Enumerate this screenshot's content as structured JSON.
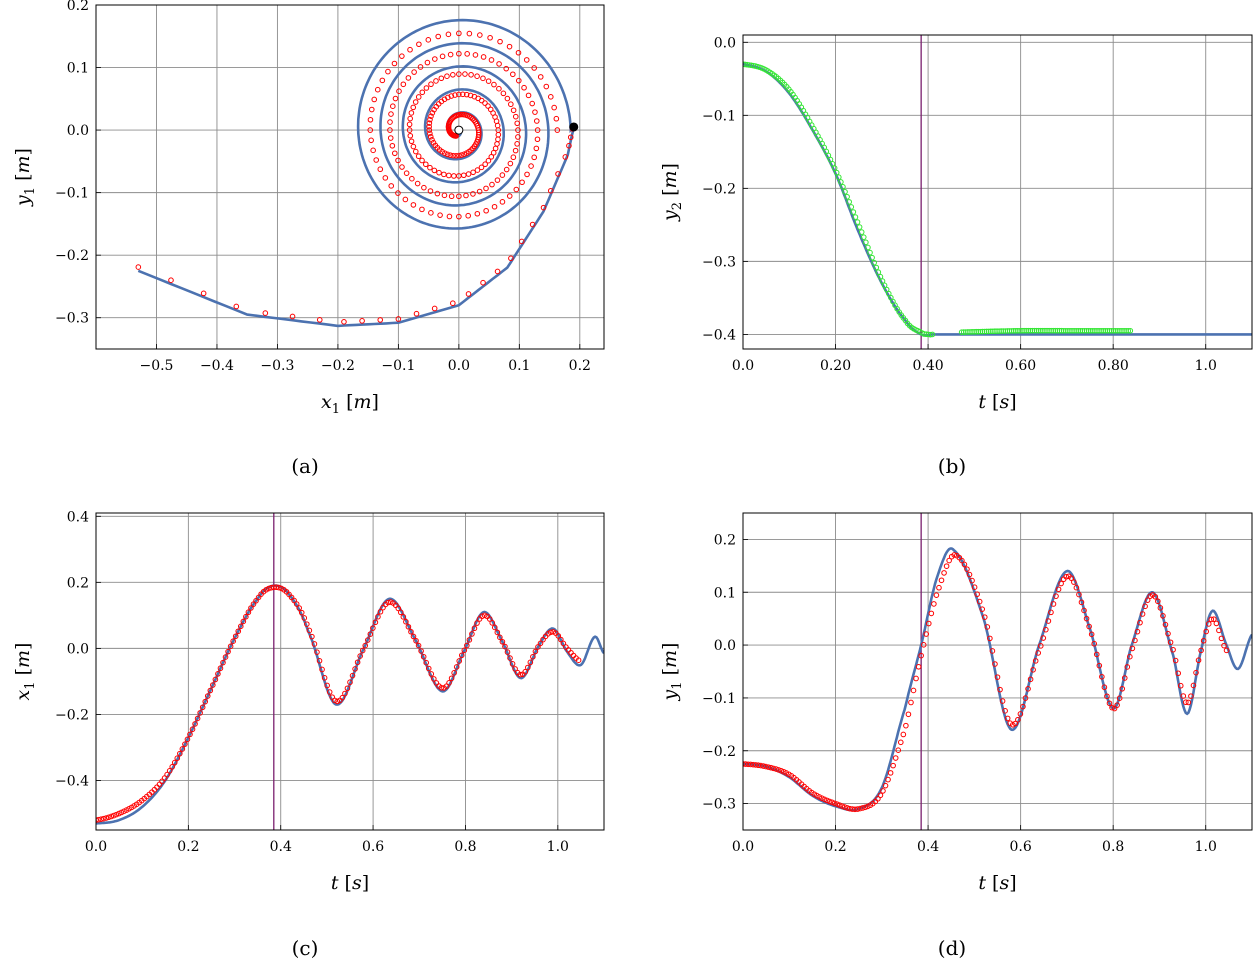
{
  "style": {
    "sim_color": "#4c72b0",
    "exp_marker_color": "#ff0000",
    "exp_marker_color_b": "#33e633",
    "vline_color": "#7a1f6e",
    "grid_color": "#8c8c8c"
  },
  "chart_data": [
    {
      "id": "a",
      "type": "line",
      "caption": "(a)",
      "xlabel": {
        "var": "x",
        "sub": "1",
        "unit": "[m]"
      },
      "ylabel": {
        "var": "y",
        "sub": "1",
        "unit": "[m]"
      },
      "xlim": [
        -0.6,
        0.24
      ],
      "ylim": [
        -0.35,
        0.2
      ],
      "xticks": [
        -0.5,
        -0.4,
        -0.3,
        -0.2,
        -0.1,
        0.0,
        0.1,
        0.2
      ],
      "xtick_labels": [
        "−0.5",
        "−0.4",
        "−0.3",
        "−0.2",
        "−0.1",
        "0.0",
        "0.1",
        "0.2"
      ],
      "yticks": [
        -0.3,
        -0.2,
        -0.1,
        0.0,
        0.1,
        0.2
      ],
      "ytick_labels": [
        "−0.3",
        "−0.2",
        "−0.1",
        "0.0",
        "0.1",
        "0.2"
      ],
      "grid": true,
      "series": [
        {
          "kind": "simulation",
          "description": "spiral trajectory ending at origin",
          "start": [
            -0.53,
            -0.225
          ],
          "spiral_center": [
            0.0,
            0.0
          ],
          "outer_radius": 0.185,
          "turns": 5
        },
        {
          "kind": "experiment",
          "marker": "circle"
        }
      ],
      "markers": [
        {
          "kind": "end-point",
          "x": 0.0,
          "y": 0.0,
          "fill": "#ffffff"
        },
        {
          "kind": "release-point",
          "x": 0.19,
          "y": 0.005,
          "fill": "#000000"
        }
      ]
    },
    {
      "id": "b",
      "type": "line",
      "caption": "(b)",
      "xlabel": {
        "var": "t",
        "sub": "",
        "unit": "[s]"
      },
      "ylabel": {
        "var": "y",
        "sub": "2",
        "unit": "[m]"
      },
      "xlim": [
        0.0,
        1.1
      ],
      "ylim": [
        -0.42,
        0.01
      ],
      "xticks": [
        0.0,
        0.2,
        0.4,
        0.6,
        0.8,
        1.0
      ],
      "xtick_labels": [
        "0.0",
        "0.20",
        "0.40",
        "0.60",
        "0.80",
        "1.0"
      ],
      "yticks": [
        -0.4,
        -0.3,
        -0.2,
        -0.1,
        0.0
      ],
      "ytick_labels": [
        "−0.4",
        "−0.3",
        "−0.2",
        "−0.1",
        "0.0"
      ],
      "grid": true,
      "vline": 0.385,
      "series": [
        {
          "kind": "simulation",
          "x": [
            0.0,
            0.05,
            0.1,
            0.15,
            0.2,
            0.25,
            0.3,
            0.35,
            0.385,
            0.41,
            1.1
          ],
          "y": [
            -0.03,
            -0.04,
            -0.07,
            -0.12,
            -0.18,
            -0.26,
            -0.33,
            -0.38,
            -0.4,
            -0.4,
            -0.4
          ]
        },
        {
          "kind": "experiment",
          "marker": "circle",
          "x": [
            0.0,
            0.05,
            0.1,
            0.15,
            0.2,
            0.25,
            0.3,
            0.35,
            0.385,
            0.4,
            0.41,
            0.47,
            0.6,
            0.7,
            0.84
          ],
          "y": [
            -0.03,
            -0.038,
            -0.065,
            -0.115,
            -0.175,
            -0.25,
            -0.325,
            -0.38,
            -0.397,
            -0.4,
            -0.4,
            -0.397,
            -0.395,
            -0.395,
            -0.395
          ]
        }
      ]
    },
    {
      "id": "c",
      "type": "line",
      "caption": "(c)",
      "xlabel": {
        "var": "t",
        "sub": "",
        "unit": "[s]"
      },
      "ylabel": {
        "var": "x",
        "sub": "1",
        "unit": "[m]"
      },
      "xlim": [
        0.0,
        1.1
      ],
      "ylim": [
        -0.55,
        0.41
      ],
      "xticks": [
        0.0,
        0.2,
        0.4,
        0.6,
        0.8,
        1.0
      ],
      "xtick_labels": [
        "0.0",
        "0.2",
        "0.4",
        "0.6",
        "0.8",
        "1.0"
      ],
      "yticks": [
        -0.4,
        -0.2,
        0.0,
        0.2,
        0.4
      ],
      "ytick_labels": [
        "−0.4",
        "−0.2",
        "0.0",
        "0.2",
        "0.4"
      ],
      "grid": true,
      "vline": 0.385,
      "series": [
        {
          "kind": "simulation",
          "x": [
            0.0,
            0.05,
            0.1,
            0.15,
            0.2,
            0.25,
            0.3,
            0.35,
            0.385,
            0.42,
            0.46,
            0.52,
            0.58,
            0.635,
            0.69,
            0.75,
            0.8,
            0.84,
            0.88,
            0.92,
            0.96,
            0.99,
            1.02,
            1.05,
            1.08,
            1.1
          ],
          "y": [
            -0.53,
            -0.52,
            -0.48,
            -0.4,
            -0.27,
            -0.12,
            0.03,
            0.15,
            0.19,
            0.16,
            0.05,
            -0.17,
            0.0,
            0.15,
            0.03,
            -0.13,
            0.0,
            0.11,
            0.02,
            -0.09,
            0.01,
            0.06,
            -0.01,
            -0.05,
            0.035,
            -0.015
          ]
        },
        {
          "kind": "experiment",
          "marker": "circle",
          "x": [
            0.0,
            0.05,
            0.1,
            0.15,
            0.2,
            0.25,
            0.3,
            0.35,
            0.385,
            0.42,
            0.46,
            0.52,
            0.58,
            0.635,
            0.69,
            0.75,
            0.8,
            0.84,
            0.88,
            0.92,
            0.96,
            0.99,
            1.02,
            1.05
          ],
          "y": [
            -0.52,
            -0.5,
            -0.46,
            -0.39,
            -0.27,
            -0.12,
            0.03,
            0.15,
            0.185,
            0.16,
            0.06,
            -0.16,
            0.0,
            0.14,
            0.03,
            -0.12,
            0.0,
            0.1,
            0.02,
            -0.08,
            0.01,
            0.05,
            0.0,
            -0.04
          ]
        }
      ]
    },
    {
      "id": "d",
      "type": "line",
      "caption": "(d)",
      "xlabel": {
        "var": "t",
        "sub": "",
        "unit": "[s]"
      },
      "ylabel": {
        "var": "y",
        "sub": "1",
        "unit": "[m]"
      },
      "xlim": [
        0.0,
        1.1
      ],
      "ylim": [
        -0.35,
        0.25
      ],
      "xticks": [
        0.0,
        0.2,
        0.4,
        0.6,
        0.8,
        1.0
      ],
      "xtick_labels": [
        "0.0",
        "0.2",
        "0.4",
        "0.6",
        "0.8",
        "1.0"
      ],
      "yticks": [
        -0.3,
        -0.2,
        -0.1,
        0.0,
        0.1,
        0.2
      ],
      "ytick_labels": [
        "−0.3",
        "−0.2",
        "−0.1",
        "0.0",
        "0.1",
        "0.2"
      ],
      "grid": true,
      "vline": 0.385,
      "series": [
        {
          "kind": "simulation",
          "x": [
            0.0,
            0.05,
            0.1,
            0.15,
            0.2,
            0.25,
            0.3,
            0.35,
            0.385,
            0.42,
            0.455,
            0.52,
            0.58,
            0.64,
            0.7,
            0.75,
            0.8,
            0.84,
            0.885,
            0.93,
            0.96,
            0.99,
            1.015,
            1.045,
            1.07,
            1.1
          ],
          "y": [
            -0.225,
            -0.23,
            -0.25,
            -0.285,
            -0.305,
            -0.31,
            -0.27,
            -0.12,
            0.0,
            0.13,
            0.18,
            0.05,
            -0.16,
            0.0,
            0.14,
            0.03,
            -0.12,
            0.0,
            0.1,
            -0.02,
            -0.13,
            -0.01,
            0.065,
            0.0,
            -0.045,
            0.02
          ]
        },
        {
          "kind": "experiment",
          "marker": "circle",
          "x": [
            0.0,
            0.05,
            0.1,
            0.15,
            0.2,
            0.25,
            0.3,
            0.35,
            0.385,
            0.42,
            0.46,
            0.52,
            0.58,
            0.64,
            0.7,
            0.75,
            0.8,
            0.84,
            0.885,
            0.93,
            0.96,
            0.99,
            1.015,
            1.045
          ],
          "y": [
            -0.225,
            -0.23,
            -0.245,
            -0.28,
            -0.3,
            -0.31,
            -0.28,
            -0.16,
            -0.02,
            0.1,
            0.17,
            0.06,
            -0.15,
            -0.01,
            0.13,
            0.03,
            -0.12,
            -0.01,
            0.095,
            -0.01,
            -0.11,
            -0.01,
            0.05,
            -0.01
          ]
        }
      ]
    }
  ]
}
